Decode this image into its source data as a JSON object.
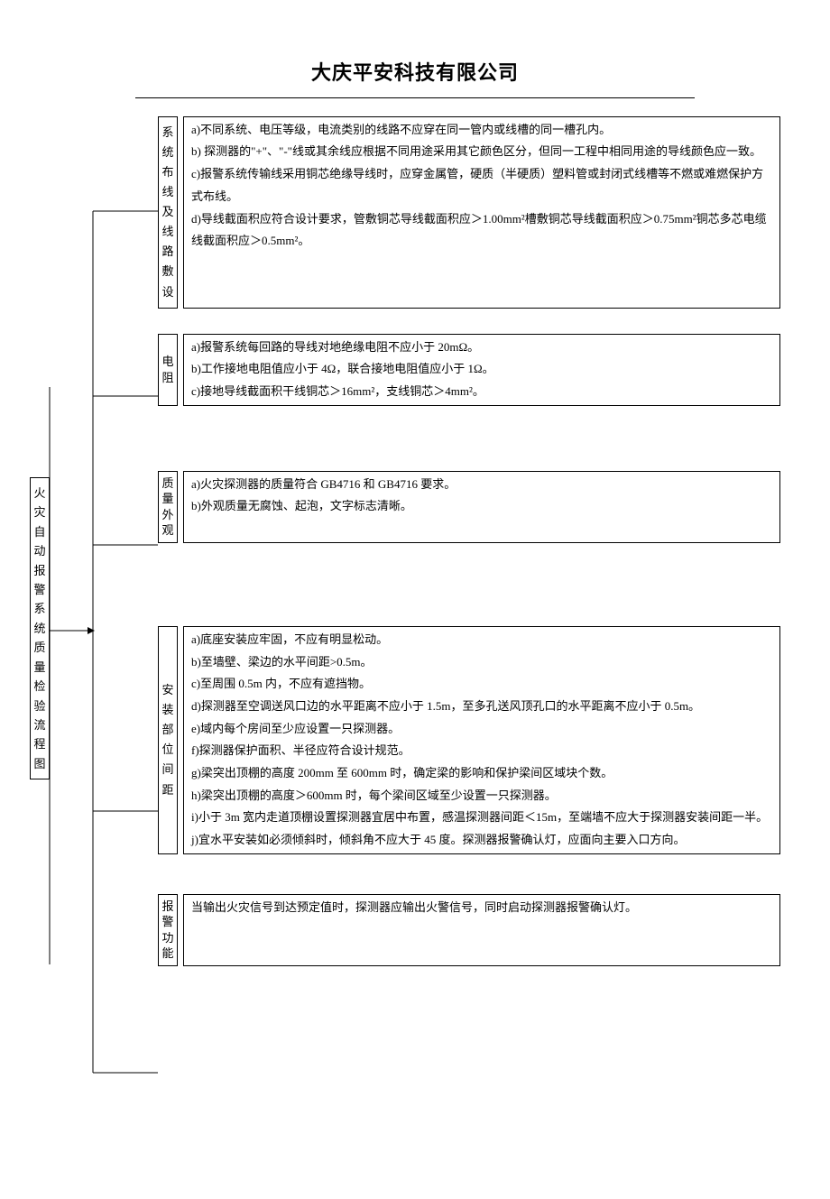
{
  "header": {
    "company": "大庆平安科技有限公司"
  },
  "mainLabel": "火灾自动报警系统质量检验流程图",
  "sections": [
    {
      "key": "wiring",
      "label": "系统布线及线路敷设",
      "items": [
        "a)不同系统、电压等级，电流类别的线路不应穿在同一管内或线槽的同一槽孔内。",
        "b) 探测器的\"+\"、\"-\"线或其余线应根据不同用途采用其它颜色区分，但同一工程中相同用途的导线颜色应一致。",
        "c)报警系统传输线采用铜芯绝缘导线时，应穿金属管，硬质（半硬质）塑料管或封闭式线槽等不燃或难燃保护方式布线。",
        "d)导线截面积应符合设计要求，管敷铜芯导线截面积应＞1.00mm²槽敷铜芯导线截面积应＞0.75mm²铜芯多芯电缆线截面积应＞0.5mm²。"
      ]
    },
    {
      "key": "resistance",
      "label": "电阻",
      "items": [
        "a)报警系统每回路的导线对地绝缘电阻不应小于 20mΩ。",
        "b)工作接地电阻值应小于 4Ω，联合接地电阻值应小于 1Ω。",
        "c)接地导线截面积干线铜芯＞16mm²，支线铜芯＞4mm²。"
      ]
    },
    {
      "key": "quality",
      "label": "质量外观",
      "items": [
        "a)火灾探测器的质量符合 GB4716 和 GB4716 要求。",
        "b)外观质量无腐蚀、起泡，文字标志清晰。"
      ]
    },
    {
      "key": "install",
      "label": "安装部位间距",
      "items": [
        "a)底座安装应牢固，不应有明显松动。",
        "b)至墙壁、梁边的水平间距>0.5m。",
        "c)至周围 0.5m 内，不应有遮挡物。",
        "d)探测器至空调送风口边的水平距离不应小于 1.5m，至多孔送风顶孔口的水平距离不应小于 0.5m。",
        "e)域内每个房间至少应设置一只探测器。",
        "f)探测器保护面积、半径应符合设计规范。",
        "g)梁突出顶棚的高度 200mm 至 600mm 时，确定梁的影响和保护梁间区域块个数。",
        "h)梁突出顶棚的高度＞600mm 时，每个梁间区域至少设置一只探测器。",
        "i)小于 3m 宽内走道顶棚设置探测器宜居中布置，感温探测器间距＜15m，至端墙不应大于探测器安装间距一半。",
        "j)宜水平安装如必须倾斜时，倾斜角不应大于 45 度。探测器报警确认灯，应面向主要入口方向。"
      ]
    },
    {
      "key": "alarm",
      "label": "报警功能",
      "items": [
        "当输出火灾信号到达预定值时，探测器应输出火警信号，同时启动探测器报警确认灯。"
      ]
    }
  ],
  "style": {
    "bg": "#ffffff",
    "text": "#000000",
    "border": "#000000"
  }
}
